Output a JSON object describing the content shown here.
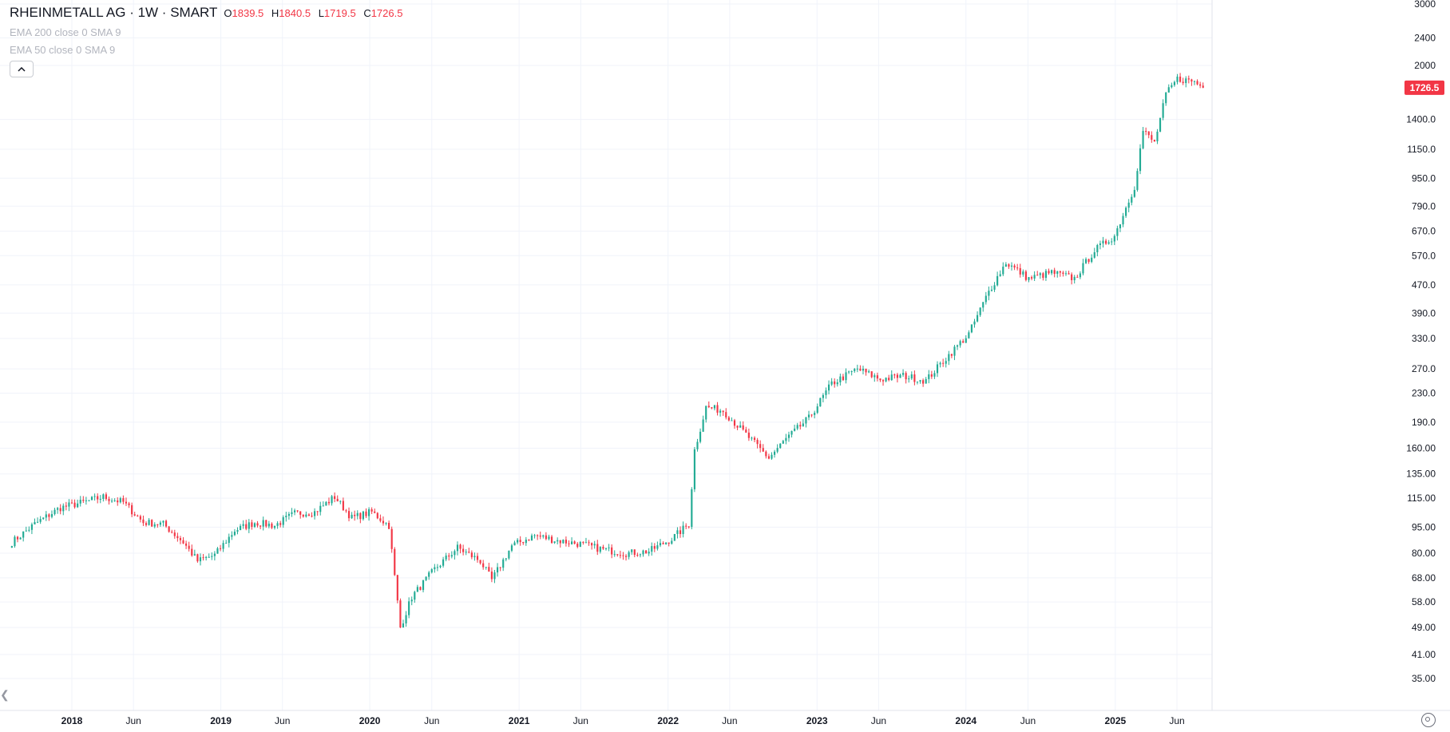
{
  "header": {
    "symbol": "RHEINMETALL AG · 1W · SMART",
    "ohlc": [
      {
        "key": "O",
        "value": "1839.5"
      },
      {
        "key": "H",
        "value": "1840.5"
      },
      {
        "key": "L",
        "value": "1719.5"
      },
      {
        "key": "C",
        "value": "1726.5"
      }
    ],
    "indicators": [
      "EMA 200 close 0 SMA 9",
      "EMA 50 close 0 SMA 9"
    ],
    "collapse_icon": "chevron-up-icon"
  },
  "colors": {
    "up": "#22ab94",
    "down": "#f23645",
    "grid": "#f0f3fa",
    "axis_text": "#131722",
    "price_label_bg": "#f23645"
  },
  "chart_data": {
    "type": "candlestick",
    "interval": "1W",
    "y_scale": "log",
    "y_ticks": [
      35,
      41,
      49,
      58,
      68,
      80,
      95,
      115,
      135,
      160,
      190,
      230,
      270,
      330,
      390,
      470,
      570,
      670,
      790,
      950,
      1150,
      1400,
      2000,
      2400,
      3000
    ],
    "y_tick_labels": [
      "35.00",
      "41.00",
      "49.00",
      "58.00",
      "68.00",
      "80.00",
      "95.00",
      "115.00",
      "135.00",
      "160.00",
      "190.0",
      "230.0",
      "270.0",
      "330.0",
      "390.0",
      "470.0",
      "570.0",
      "670.0",
      "790.0",
      "950.0",
      "1150.0",
      "1400.0",
      "2000",
      "2400",
      "3000"
    ],
    "x_ticks": [
      {
        "label": "2018",
        "date": "2018-01-01",
        "bold": true
      },
      {
        "label": "Jun",
        "date": "2018-06-01",
        "bold": false
      },
      {
        "label": "2019",
        "date": "2019-01-01",
        "bold": true
      },
      {
        "label": "Jun",
        "date": "2019-06-01",
        "bold": false
      },
      {
        "label": "2020",
        "date": "2020-01-01",
        "bold": true
      },
      {
        "label": "Jun",
        "date": "2020-06-01",
        "bold": false
      },
      {
        "label": "2021",
        "date": "2021-01-01",
        "bold": true
      },
      {
        "label": "Jun",
        "date": "2021-06-01",
        "bold": false
      },
      {
        "label": "2022",
        "date": "2022-01-01",
        "bold": true
      },
      {
        "label": "Jun",
        "date": "2022-06-01",
        "bold": false
      },
      {
        "label": "2023",
        "date": "2023-01-01",
        "bold": true
      },
      {
        "label": "Jun",
        "date": "2023-06-01",
        "bold": false
      },
      {
        "label": "2024",
        "date": "2024-01-01",
        "bold": true
      },
      {
        "label": "Jun",
        "date": "2024-06-01",
        "bold": false
      },
      {
        "label": "2025",
        "date": "2025-01-01",
        "bold": true
      },
      {
        "label": "Jun",
        "date": "2025-06-01",
        "bold": false
      }
    ],
    "last_price": 1726.5,
    "last_price_label": "1726.5",
    "approx_weekly_close_path": [
      {
        "date": "2017-08-07",
        "close": 86
      },
      {
        "date": "2017-10-02",
        "close": 97
      },
      {
        "date": "2017-12-04",
        "close": 108
      },
      {
        "date": "2018-01-29",
        "close": 112
      },
      {
        "date": "2018-03-19",
        "close": 116
      },
      {
        "date": "2018-05-07",
        "close": 112
      },
      {
        "date": "2018-06-25",
        "close": 98
      },
      {
        "date": "2018-08-13",
        "close": 97
      },
      {
        "date": "2018-10-01",
        "close": 86
      },
      {
        "date": "2018-11-05",
        "close": 76
      },
      {
        "date": "2018-12-17",
        "close": 79
      },
      {
        "date": "2019-02-04",
        "close": 93
      },
      {
        "date": "2019-03-25",
        "close": 98
      },
      {
        "date": "2019-05-13",
        "close": 96
      },
      {
        "date": "2019-07-01",
        "close": 104
      },
      {
        "date": "2019-08-19",
        "close": 105
      },
      {
        "date": "2019-10-07",
        "close": 116
      },
      {
        "date": "2019-11-18",
        "close": 101
      },
      {
        "date": "2020-01-06",
        "close": 105
      },
      {
        "date": "2020-02-17",
        "close": 96
      },
      {
        "date": "2020-03-16",
        "close": 49
      },
      {
        "date": "2020-04-13",
        "close": 60
      },
      {
        "date": "2020-06-08",
        "close": 72
      },
      {
        "date": "2020-08-03",
        "close": 83
      },
      {
        "date": "2020-09-28",
        "close": 76
      },
      {
        "date": "2020-10-26",
        "close": 67
      },
      {
        "date": "2020-12-14",
        "close": 84
      },
      {
        "date": "2021-02-08",
        "close": 90
      },
      {
        "date": "2021-04-05",
        "close": 87
      },
      {
        "date": "2021-05-31",
        "close": 85
      },
      {
        "date": "2021-07-26",
        "close": 82
      },
      {
        "date": "2021-09-20",
        "close": 80
      },
      {
        "date": "2021-11-15",
        "close": 81
      },
      {
        "date": "2022-01-10",
        "close": 88
      },
      {
        "date": "2022-02-21",
        "close": 97
      },
      {
        "date": "2022-03-07",
        "close": 158
      },
      {
        "date": "2022-04-04",
        "close": 210
      },
      {
        "date": "2022-05-16",
        "close": 205
      },
      {
        "date": "2022-07-11",
        "close": 175
      },
      {
        "date": "2022-09-05",
        "close": 150
      },
      {
        "date": "2022-10-17",
        "close": 170
      },
      {
        "date": "2022-12-12",
        "close": 195
      },
      {
        "date": "2023-02-06",
        "close": 245
      },
      {
        "date": "2023-04-10",
        "close": 270
      },
      {
        "date": "2023-06-05",
        "close": 252
      },
      {
        "date": "2023-07-31",
        "close": 258
      },
      {
        "date": "2023-09-25",
        "close": 250
      },
      {
        "date": "2023-11-13",
        "close": 290
      },
      {
        "date": "2024-01-08",
        "close": 340
      },
      {
        "date": "2024-02-26",
        "close": 450
      },
      {
        "date": "2024-04-08",
        "close": 545
      },
      {
        "date": "2024-06-03",
        "close": 490
      },
      {
        "date": "2024-07-29",
        "close": 510
      },
      {
        "date": "2024-09-23",
        "close": 490
      },
      {
        "date": "2024-11-11",
        "close": 590
      },
      {
        "date": "2024-12-30",
        "close": 650
      },
      {
        "date": "2025-02-17",
        "close": 900
      },
      {
        "date": "2025-03-10",
        "close": 1300
      },
      {
        "date": "2025-04-07",
        "close": 1200
      },
      {
        "date": "2025-05-05",
        "close": 1650
      },
      {
        "date": "2025-06-02",
        "close": 1830
      },
      {
        "date": "2025-07-14",
        "close": 1800
      },
      {
        "date": "2025-08-04",
        "close": 1726.5
      }
    ]
  }
}
